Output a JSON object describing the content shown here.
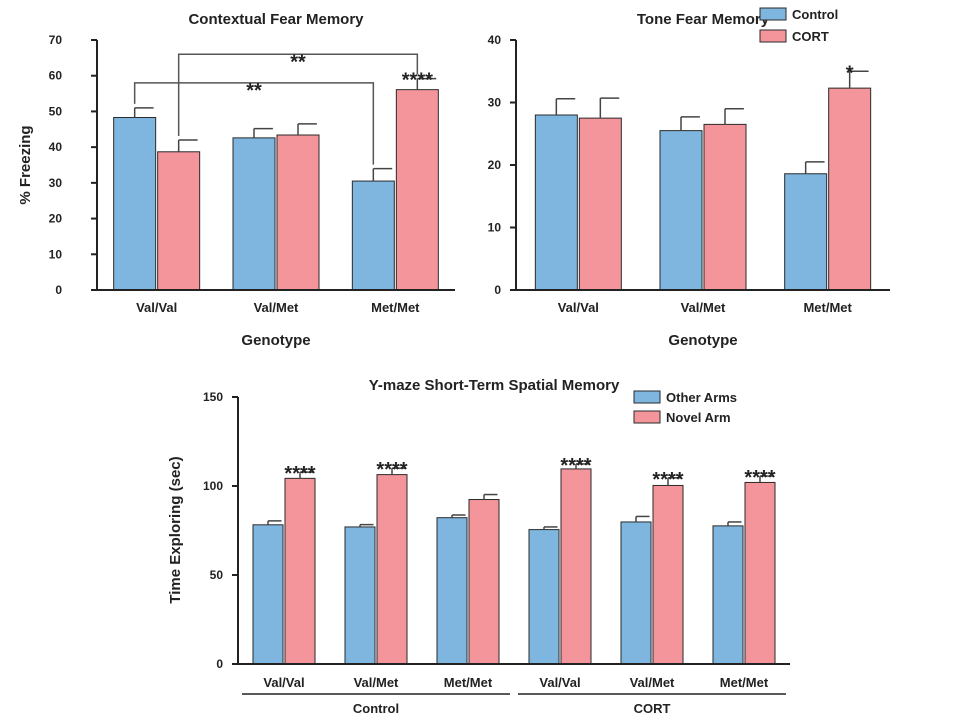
{
  "chart_data": [
    {
      "type": "bar",
      "title": "Contextual Fear Memory",
      "xlabel": "Genotype",
      "ylabel": "% Freezing",
      "ylim": [
        0,
        70
      ],
      "yticks": [
        0,
        10,
        20,
        30,
        40,
        50,
        60,
        70
      ],
      "categories": [
        "Val/Val",
        "Val/Met",
        "Met/Met"
      ],
      "series": [
        {
          "name": "Control",
          "color": "#7fb6e0",
          "values": [
            48.3,
            42.6,
            30.5
          ],
          "errors": [
            2.7,
            2.6,
            3.5
          ]
        },
        {
          "name": "CORT",
          "color": "#f4959c",
          "values": [
            38.7,
            43.4,
            56.1
          ],
          "errors": [
            3.3,
            3.1,
            3.1
          ]
        }
      ],
      "significance": [
        {
          "category": 2,
          "series": 1,
          "label": "****"
        }
      ],
      "brackets": [
        {
          "from": {
            "category": 0,
            "series": 0
          },
          "to": {
            "category": 2,
            "series": 0
          },
          "label": "**",
          "level": 58
        },
        {
          "from": {
            "category": 0,
            "series": 1
          },
          "to": {
            "category": 2,
            "series": 1
          },
          "label": "**",
          "level": 66
        }
      ],
      "legend": "none"
    },
    {
      "type": "bar",
      "title": "Tone Fear Memory",
      "xlabel": "Genotype",
      "ylabel": "",
      "ylim": [
        0,
        40
      ],
      "yticks": [
        0,
        10,
        20,
        30,
        40
      ],
      "categories": [
        "Val/Val",
        "Val/Met",
        "Met/Met"
      ],
      "series": [
        {
          "name": "Control",
          "color": "#7fb6e0",
          "values": [
            28.0,
            25.5,
            18.6
          ],
          "errors": [
            2.6,
            2.2,
            1.9
          ]
        },
        {
          "name": "CORT",
          "color": "#f4959c",
          "values": [
            27.5,
            26.5,
            32.3
          ],
          "errors": [
            3.2,
            2.5,
            2.7
          ]
        }
      ],
      "significance": [
        {
          "category": 2,
          "series": 1,
          "label": "*"
        }
      ],
      "brackets": [],
      "legend": "top-right"
    },
    {
      "type": "bar",
      "title": "Y-maze Short-Term Spatial  Memory",
      "xlabel": "",
      "ylabel": "Time Exploring (sec)",
      "ylim": [
        0,
        150
      ],
      "yticks": [
        0,
        50,
        100,
        150
      ],
      "categories": [
        "Val/Val",
        "Val/Met",
        "Met/Met",
        "Val/Val",
        "Val/Met",
        "Met/Met"
      ],
      "groups": [
        {
          "label": "Control",
          "categories": [
            0,
            1,
            2
          ]
        },
        {
          "label": "CORT",
          "categories": [
            3,
            4,
            5
          ]
        }
      ],
      "series": [
        {
          "name": "Other Arms",
          "color": "#7fb6e0",
          "values": [
            78.2,
            77.0,
            82.2,
            75.5,
            79.8,
            77.6
          ],
          "errors": [
            2.2,
            1.3,
            1.5,
            1.5,
            3.1,
            2.2
          ]
        },
        {
          "name": "Novel Arm",
          "color": "#f4959c",
          "values": [
            104.3,
            106.4,
            92.4,
            109.6,
            100.3,
            102.0
          ],
          "errors": [
            3.5,
            3.6,
            2.8,
            2.8,
            4.3,
            3.6
          ]
        }
      ],
      "significance": [
        {
          "category": 0,
          "series": 1,
          "label": "****"
        },
        {
          "category": 1,
          "series": 1,
          "label": "****"
        },
        {
          "category": 3,
          "series": 1,
          "label": "****"
        },
        {
          "category": 4,
          "series": 1,
          "label": "****"
        },
        {
          "category": 5,
          "series": 1,
          "label": "****"
        }
      ],
      "brackets": [],
      "legend": "top-right"
    }
  ]
}
